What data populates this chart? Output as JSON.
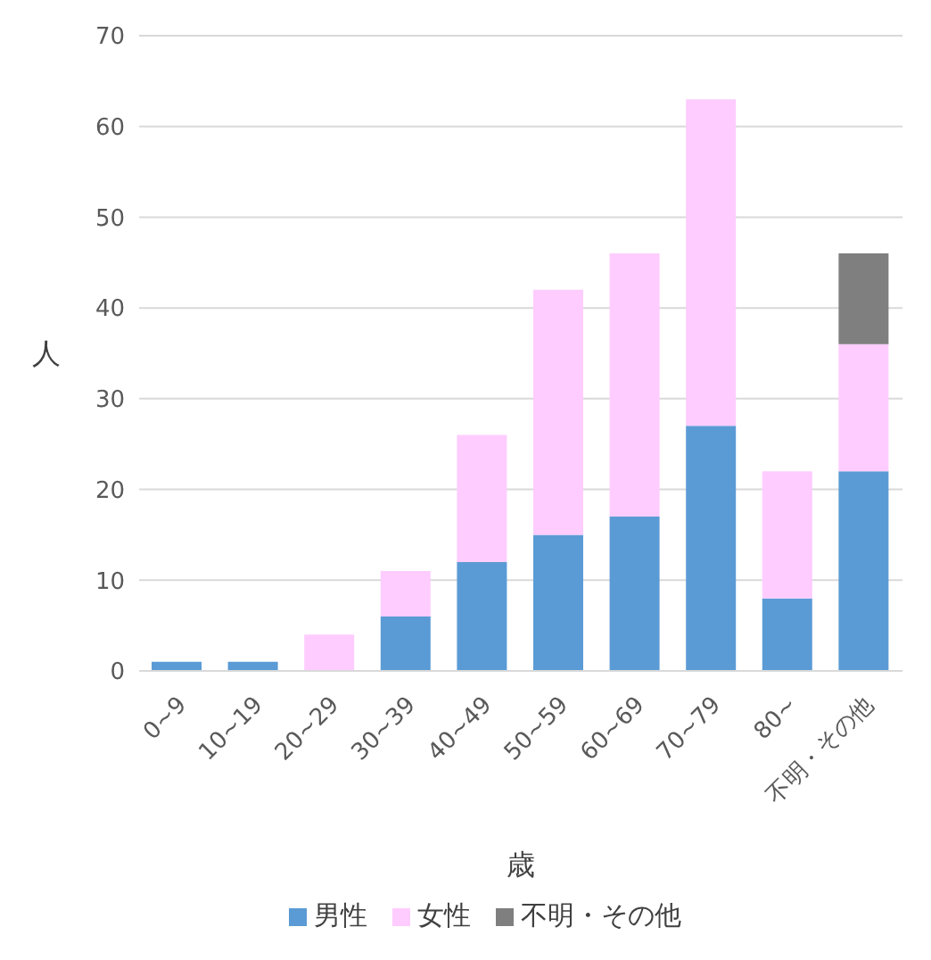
{
  "chart_data": {
    "type": "bar",
    "stacked": true,
    "xlabel": "歳",
    "ylabel": "人",
    "categories": [
      "0~9",
      "10~19",
      "20~29",
      "30~39",
      "40~49",
      "50~59",
      "60~69",
      "70~79",
      "80~",
      "不明・その他"
    ],
    "series": [
      {
        "name": "男性",
        "color": "#5b9bd5",
        "values": [
          1,
          1,
          0,
          6,
          12,
          15,
          17,
          27,
          8,
          22
        ]
      },
      {
        "name": "女性",
        "color": "#ffccff",
        "values": [
          0,
          0,
          4,
          5,
          14,
          27,
          29,
          36,
          14,
          14
        ]
      },
      {
        "name": "不明・その他",
        "color": "#7f7f7f",
        "values": [
          0,
          0,
          0,
          0,
          0,
          0,
          0,
          0,
          0,
          10
        ]
      }
    ],
    "ylim": [
      0,
      70
    ],
    "yticks": [
      0,
      10,
      20,
      30,
      40,
      50,
      60,
      70
    ],
    "grid": "y",
    "legend": "bottom"
  }
}
